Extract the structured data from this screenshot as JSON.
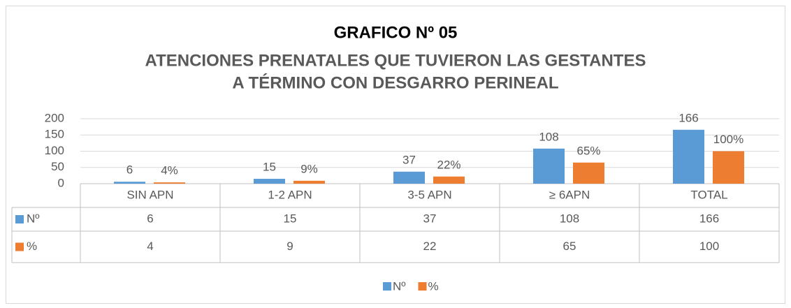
{
  "chart_data": {
    "type": "bar",
    "title": "GRAFICO Nº 05",
    "subtitle": [
      "ATENCIONES PRENATALES QUE TUVIERON LAS GESTANTES",
      "A TÉRMINO  CON DESGARRO PERINEAL"
    ],
    "categories": [
      "SIN APN",
      "1-2 APN",
      "3-5 APN",
      "≥ 6APN",
      "TOTAL"
    ],
    "series": [
      {
        "name": "Nº",
        "color": "#5b9bd5",
        "values": [
          6,
          15,
          37,
          108,
          166
        ]
      },
      {
        "name": "%",
        "color": "#ed7d31",
        "values": [
          4,
          9,
          22,
          65,
          100
        ],
        "value_labels": [
          "4%",
          "9%",
          "22%",
          "65%",
          "100%"
        ]
      }
    ],
    "ylim": [
      0,
      200
    ],
    "yticks": [
      0,
      50,
      100,
      150,
      200
    ],
    "grid": true,
    "legend": "bottom"
  }
}
